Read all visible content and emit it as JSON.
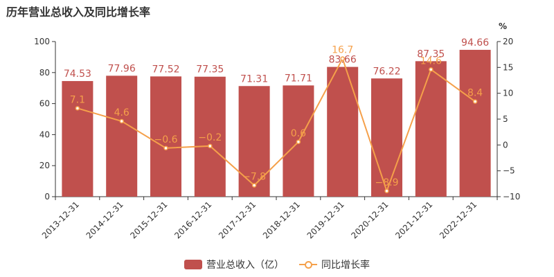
{
  "title": "历年营业总收入及同比增长率",
  "chart_data": {
    "type": "bar",
    "categories": [
      "2013-12-31",
      "2014-12-31",
      "2015-12-31",
      "2016-12-31",
      "2017-12-31",
      "2018-12-31",
      "2019-12-31",
      "2020-12-31",
      "2021-12-31",
      "2022-12-31"
    ],
    "series": [
      {
        "name": "营业总收入（亿）",
        "type": "bar",
        "axis": "left",
        "values": [
          74.53,
          77.96,
          77.52,
          77.35,
          71.31,
          71.71,
          83.66,
          76.22,
          87.35,
          94.66
        ]
      },
      {
        "name": "同比增长率",
        "type": "line",
        "axis": "right",
        "values": [
          7.1,
          4.6,
          -0.6,
          -0.2,
          -7.8,
          0.6,
          16.7,
          -8.9,
          14.6,
          8.4
        ]
      }
    ],
    "y_left": {
      "range": [
        0,
        100
      ],
      "ticks": [
        "0",
        "20",
        "40",
        "60",
        "80",
        "100"
      ]
    },
    "y_right": {
      "range": [
        -10,
        20
      ],
      "ticks": [
        "−10",
        "−5",
        "0",
        "5",
        "10",
        "15",
        "20"
      ],
      "unit_label": "%"
    },
    "bar_labels": [
      "74.53",
      "77.96",
      "77.52",
      "77.35",
      "71.31",
      "71.71",
      "83.66",
      "76.22",
      "87.35",
      "94.66"
    ],
    "line_labels": [
      "7.1",
      "4.6",
      "−0.6",
      "−0.2",
      "−7.8",
      "0.6",
      "16.7",
      "−8.9",
      "14.6",
      "8.4"
    ],
    "legend_position": "bottom-center",
    "grid": false,
    "colors": {
      "bar": "#c0504d",
      "line": "#f5a04a",
      "bar_label": "#c0504d",
      "line_label": "#f5a04a"
    }
  },
  "legend": {
    "bar": "营业总收入（亿）",
    "line": "同比增长率"
  }
}
